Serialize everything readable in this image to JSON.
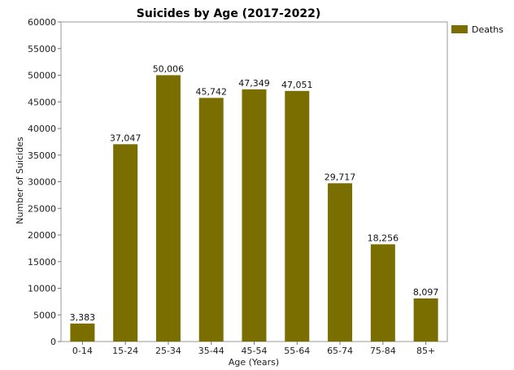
{
  "chart_data": {
    "type": "bar",
    "title": "Suicides by Age (2017-2022)",
    "xlabel": "Age (Years)",
    "ylabel": "Number of Suicides",
    "categories": [
      "0-14",
      "15-24",
      "25-34",
      "35-44",
      "45-54",
      "55-64",
      "65-74",
      "75-84",
      "85+"
    ],
    "series": [
      {
        "name": "Deaths",
        "values": [
          3383,
          37047,
          50006,
          45742,
          47349,
          47051,
          29717,
          18256,
          8097
        ],
        "labels": [
          "3,383",
          "37,047",
          "50,006",
          "45,742",
          "47,349",
          "47,051",
          "29,717",
          "18,256",
          "8,097"
        ],
        "color": "#7a6e00"
      }
    ],
    "ylim": [
      0,
      60000
    ],
    "yticks": [
      "0",
      "5000",
      "10000",
      "15000",
      "20000",
      "25000",
      "30000",
      "35000",
      "40000",
      "45000",
      "50000",
      "55000",
      "60000"
    ],
    "grid": false,
    "legend_position": "top-right"
  }
}
